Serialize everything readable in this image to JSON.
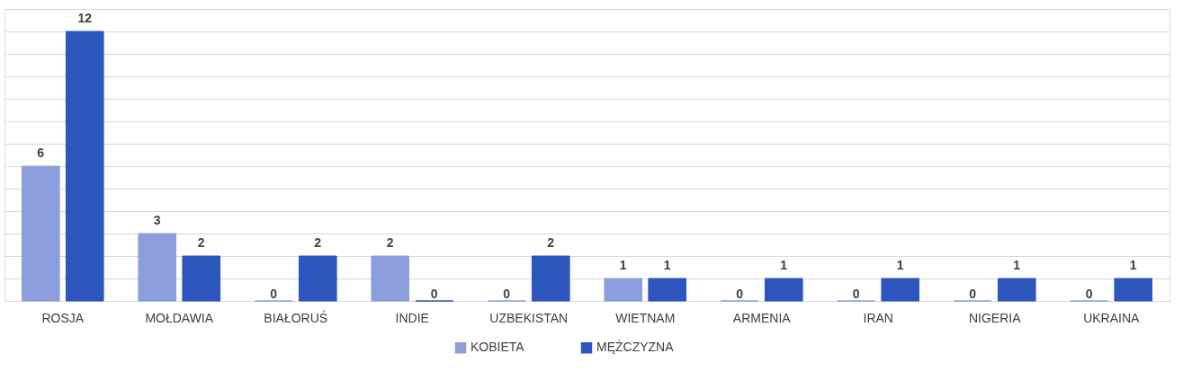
{
  "chart_data": {
    "type": "bar",
    "categories": [
      "ROSJA",
      "MOŁDAWIA",
      "BIAŁORUŚ",
      "INDIE",
      "UZBEKISTAN",
      "WIETNAM",
      "ARMENIA",
      "IRAN",
      "NIGERIA",
      "UKRAINA"
    ],
    "series": [
      {
        "name": "KOBIETA",
        "color": "#8c9fdc",
        "values": [
          6,
          3,
          0,
          2,
          0,
          1,
          0,
          0,
          0,
          0
        ]
      },
      {
        "name": "MĘŻCZYZNA",
        "color": "#2c55bd",
        "values": [
          12,
          2,
          2,
          0,
          2,
          1,
          1,
          1,
          1,
          1
        ]
      }
    ],
    "ylim": [
      0,
      13
    ],
    "yticks": [
      {
        "value": 0,
        "label": null
      },
      {
        "value": 1,
        "label": null
      },
      {
        "value": 2,
        "label": null
      },
      {
        "value": 3,
        "label": null
      },
      {
        "value": 4,
        "label": null
      },
      {
        "value": 5,
        "label": null
      },
      {
        "value": 6,
        "label": null
      },
      {
        "value": 7,
        "label": null
      },
      {
        "value": 8,
        "label": null
      },
      {
        "value": 9,
        "label": null
      },
      {
        "value": 10,
        "label": null
      },
      {
        "value": 11,
        "label": null
      },
      {
        "value": 12,
        "label": null
      },
      {
        "value": 13,
        "label": null
      }
    ],
    "tick_labels": "x",
    "grid": "y",
    "legend": "bottom",
    "data_labels": true
  }
}
